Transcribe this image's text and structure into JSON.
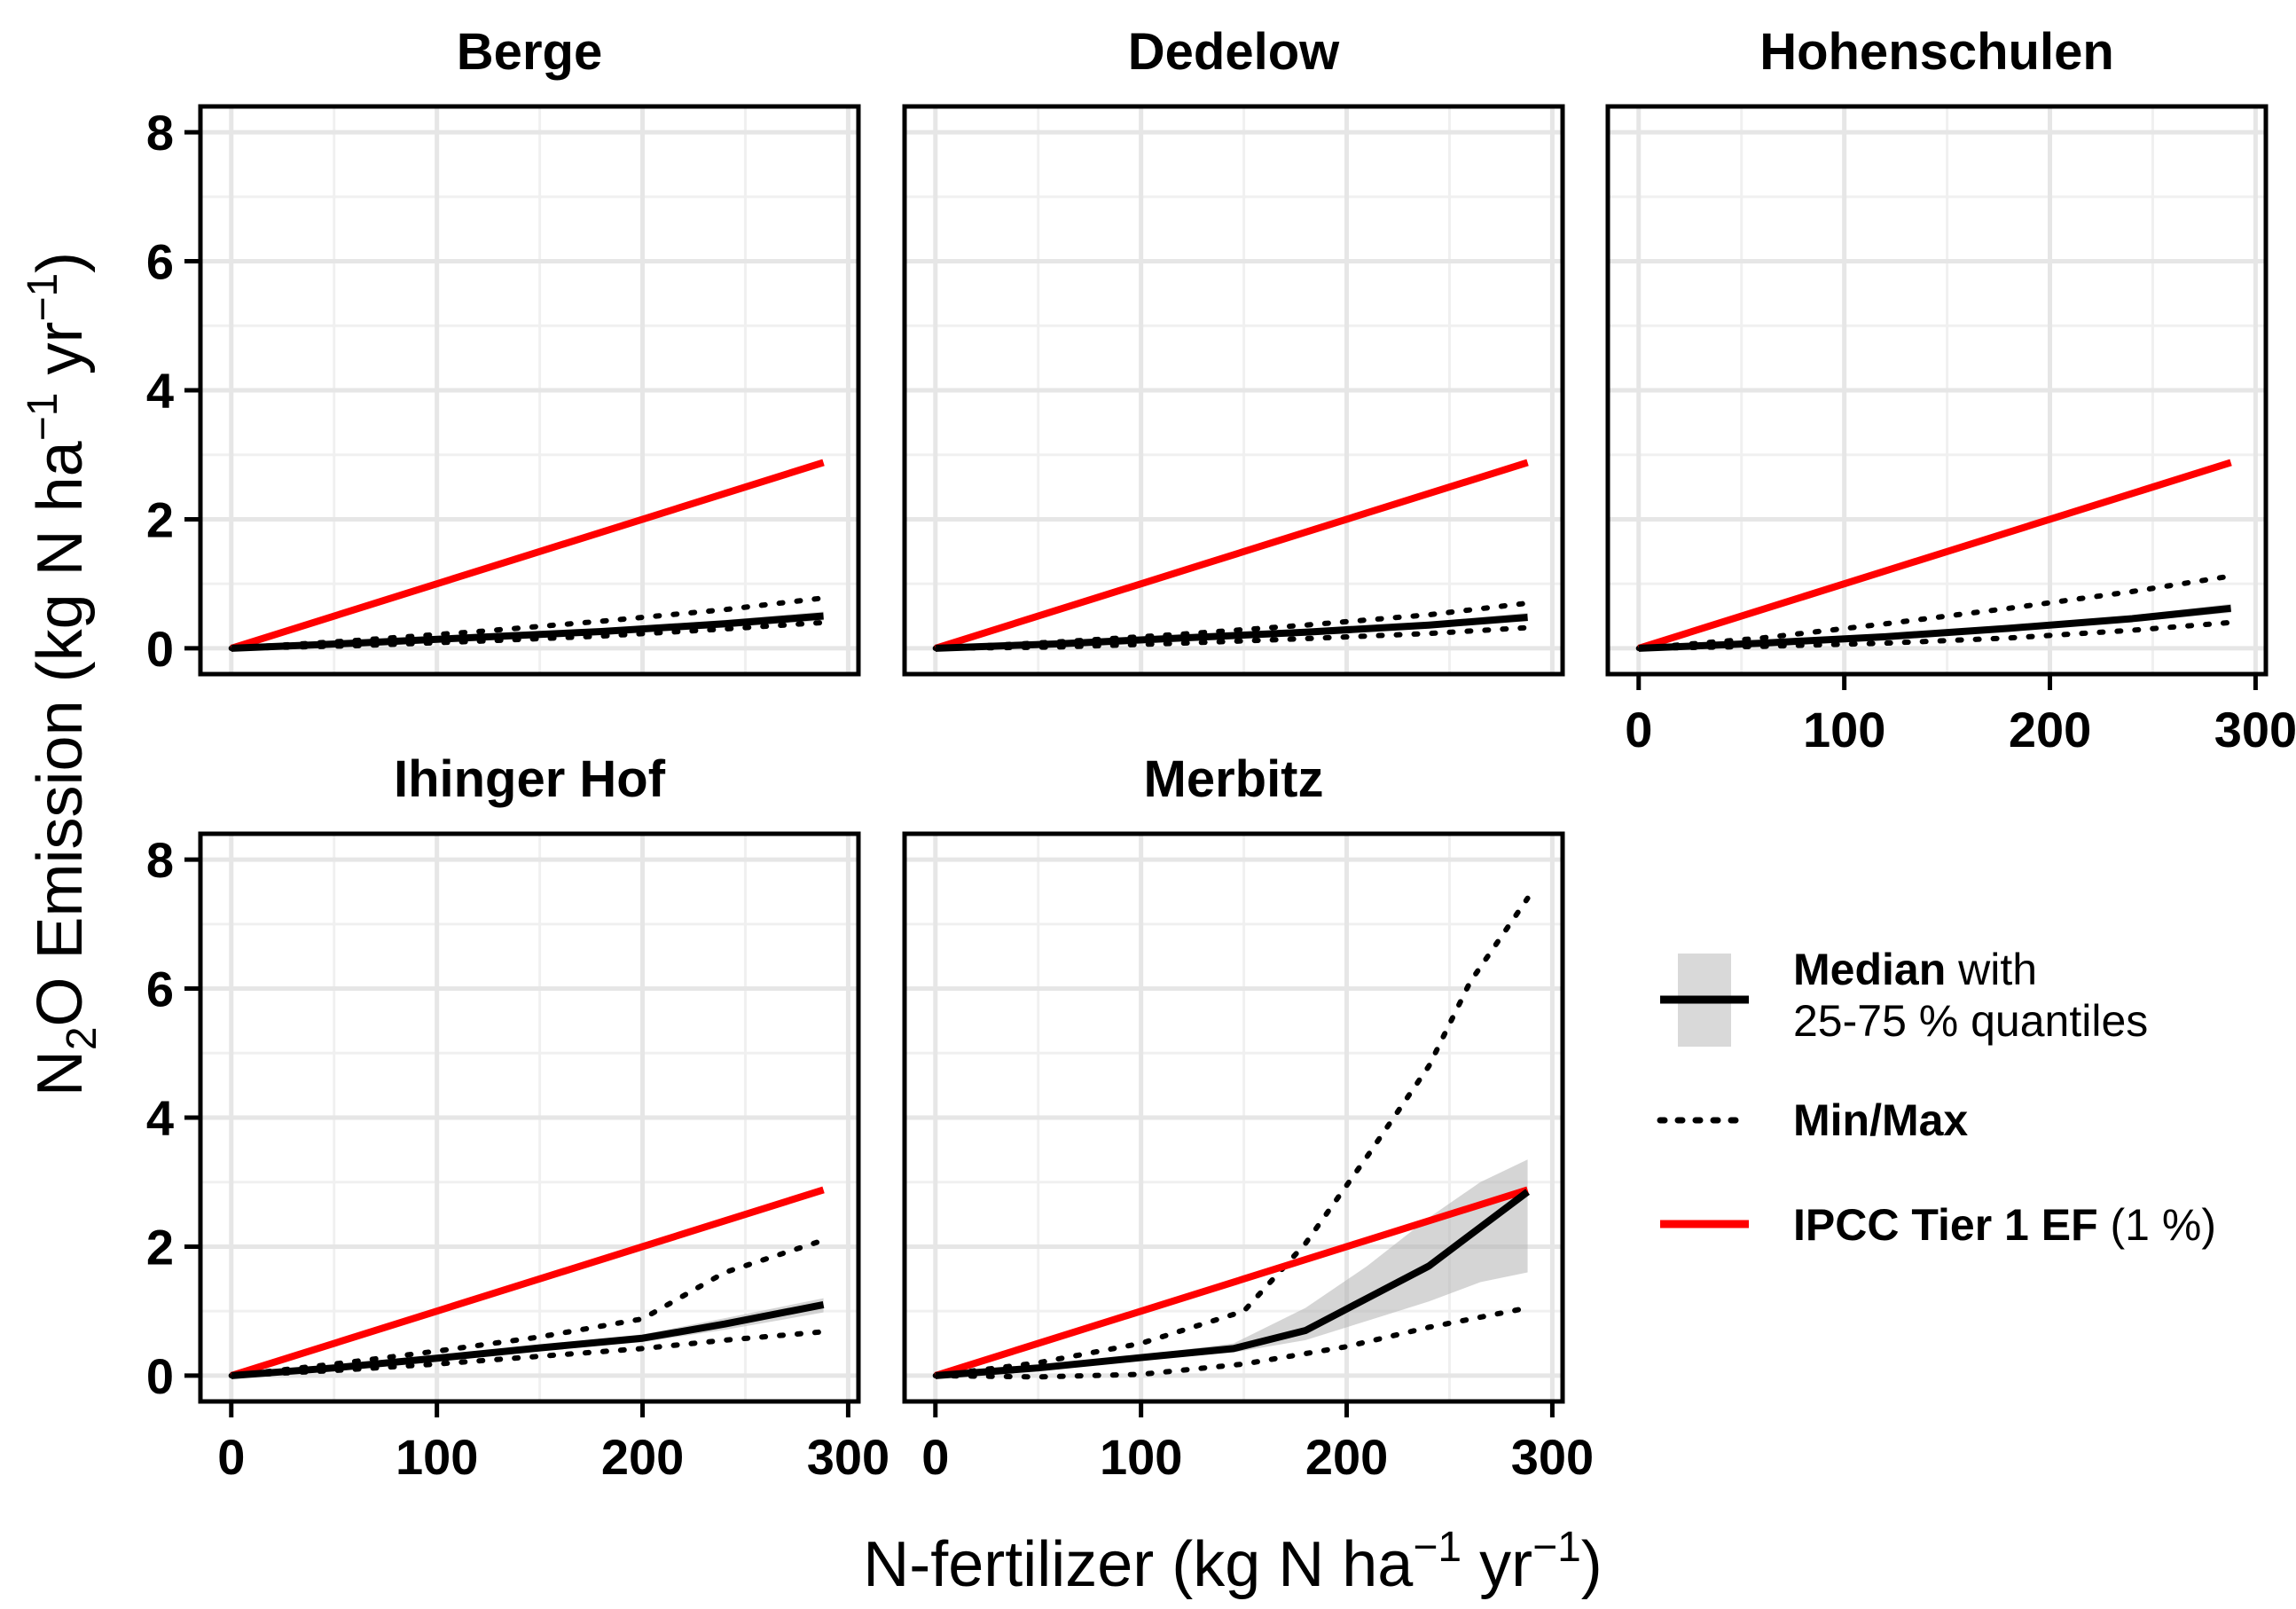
{
  "chart_data": {
    "type": "line",
    "facet_layout": "3 columns x 2 rows",
    "xlabel_parts": {
      "main": "N-fertilizer (kg N ha",
      "sup1": "−1",
      "mid": " yr",
      "sup2": "−1",
      "end": ")"
    },
    "ylabel_parts": {
      "pre": "N",
      "sub": "2",
      "main": "O Emission (kg N ha",
      "sup1": "−1",
      "mid": " yr",
      "sup2": "−1",
      "end": ")"
    },
    "xlim": [
      -15,
      305
    ],
    "ylim": [
      -0.4,
      8.4
    ],
    "x_ticks": [
      0,
      100,
      200,
      300
    ],
    "y_ticks": [
      0,
      2,
      4,
      6,
      8
    ],
    "x_tick_labels": [
      "0",
      "100",
      "200",
      "300"
    ],
    "y_tick_labels": [
      "0",
      "2",
      "4",
      "6",
      "8"
    ],
    "ipcc_factor": 0.01,
    "ipcc_x": [
      0,
      288
    ],
    "legend": {
      "median_bold": "Median",
      "median_rest": " with",
      "median_line2": "25-75 % quantiles",
      "minmax": "Min/Max",
      "ipcc_bold": "IPCC Tier 1 EF",
      "ipcc_rest": " (1 %)"
    },
    "colors": {
      "ipcc": "#ff0000",
      "median": "#000000",
      "band": "#b3b3b3",
      "grid": "#e6e6e6"
    },
    "panels": [
      {
        "site": "Berge",
        "median": {
          "x": [
            0,
            60,
            120,
            180,
            240,
            288
          ],
          "y": [
            0,
            0.08,
            0.17,
            0.26,
            0.38,
            0.5
          ]
        },
        "q25": [
          0,
          0.06,
          0.13,
          0.21,
          0.32,
          0.43
        ],
        "q75": [
          0,
          0.1,
          0.2,
          0.3,
          0.44,
          0.57
        ],
        "min": {
          "x": [
            0,
            60,
            120,
            180,
            240,
            288
          ],
          "y": [
            0,
            0.04,
            0.11,
            0.19,
            0.3,
            0.4
          ]
        },
        "max": {
          "x": [
            0,
            60,
            120,
            180,
            240,
            288
          ],
          "y": [
            0,
            0.12,
            0.26,
            0.42,
            0.6,
            0.78
          ]
        }
      },
      {
        "site": "Dedelow",
        "median": {
          "x": [
            0,
            60,
            120,
            180,
            240,
            288
          ],
          "y": [
            0,
            0.07,
            0.16,
            0.25,
            0.36,
            0.48
          ]
        },
        "q25": [
          0,
          0.05,
          0.13,
          0.21,
          0.31,
          0.42
        ],
        "q75": [
          0,
          0.09,
          0.19,
          0.29,
          0.41,
          0.55
        ],
        "min": {
          "x": [
            0,
            60,
            120,
            180,
            240,
            288
          ],
          "y": [
            0,
            0.02,
            0.08,
            0.15,
            0.23,
            0.32
          ]
        },
        "max": {
          "x": [
            0,
            60,
            120,
            180,
            240,
            288
          ],
          "y": [
            0,
            0.1,
            0.22,
            0.36,
            0.52,
            0.7
          ]
        }
      },
      {
        "site": "Hohenschulen",
        "median": {
          "x": [
            0,
            60,
            120,
            180,
            240,
            288
          ],
          "y": [
            0,
            0.08,
            0.18,
            0.31,
            0.46,
            0.62
          ]
        },
        "q25": [
          0,
          0.06,
          0.15,
          0.27,
          0.41,
          0.55
        ],
        "q75": [
          0,
          0.1,
          0.21,
          0.35,
          0.51,
          0.69
        ],
        "min": {
          "x": [
            0,
            60,
            120,
            180,
            240,
            288
          ],
          "y": [
            0,
            0.03,
            0.08,
            0.16,
            0.28,
            0.4
          ]
        },
        "max": {
          "x": [
            0,
            60,
            120,
            180,
            240,
            288
          ],
          "y": [
            0,
            0.16,
            0.38,
            0.62,
            0.88,
            1.12
          ]
        }
      },
      {
        "site": "Ihinger Hof",
        "median": {
          "x": [
            0,
            50,
            100,
            150,
            200,
            240,
            288
          ],
          "y": [
            0,
            0.12,
            0.27,
            0.43,
            0.58,
            0.8,
            1.1
          ]
        },
        "q25": [
          0,
          0.1,
          0.23,
          0.38,
          0.52,
          0.71,
          0.98
        ],
        "q75": [
          0,
          0.14,
          0.31,
          0.48,
          0.64,
          0.89,
          1.2
        ],
        "min": {
          "x": [
            0,
            50,
            100,
            150,
            200,
            240,
            288
          ],
          "y": [
            0,
            0.08,
            0.18,
            0.3,
            0.42,
            0.55,
            0.68
          ]
        },
        "max": {
          "x": [
            0,
            50,
            100,
            150,
            200,
            240,
            288
          ],
          "y": [
            0,
            0.18,
            0.38,
            0.6,
            0.88,
            1.6,
            2.1
          ]
        }
      },
      {
        "site": "Merbitz",
        "median": {
          "x": [
            0,
            50,
            100,
            145,
            180,
            210,
            240,
            265,
            288
          ],
          "y": [
            0,
            0.12,
            0.28,
            0.42,
            0.7,
            1.2,
            1.7,
            2.3,
            2.85
          ]
        },
        "q25": [
          0,
          0.1,
          0.24,
          0.36,
          0.55,
          0.85,
          1.15,
          1.45,
          1.6
        ],
        "q75": [
          0,
          0.14,
          0.32,
          0.5,
          1.05,
          1.7,
          2.45,
          3.0,
          3.35
        ],
        "min": {
          "x": [
            0,
            50,
            100,
            150,
            200,
            240,
            288
          ],
          "y": [
            0,
            -0.02,
            0.02,
            0.18,
            0.45,
            0.75,
            1.05
          ]
        },
        "max": {
          "x": [
            0,
            50,
            100,
            150,
            180,
            210,
            240,
            260,
            288
          ],
          "y": [
            0,
            0.2,
            0.5,
            1.0,
            2.05,
            3.4,
            4.8,
            6.1,
            7.4
          ]
        }
      }
    ]
  }
}
